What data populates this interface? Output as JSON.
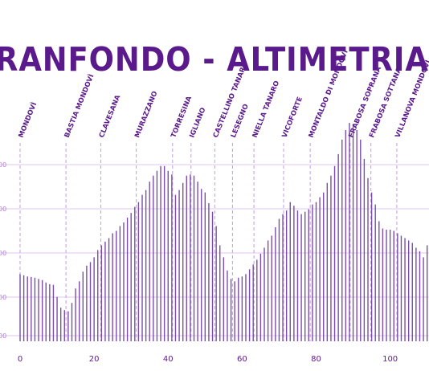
{
  "colors": {
    "accent": "#5b1a8c",
    "bars": "#7a4ea8",
    "guides": "#c59be0",
    "grid": "#e1c6f0",
    "ticks": "#b07fd0"
  },
  "title": "RANFONDO - ALTIMETRIA",
  "chart_data": {
    "type": "bar",
    "title": "RANFONDO - ALTIMETRIA",
    "xlabel": "",
    "ylabel": "",
    "x_ticks": [
      0,
      20,
      40,
      60,
      80,
      100
    ],
    "xlim": [
      0,
      110.5
    ],
    "ylim": [
      80,
      1000
    ],
    "grid": true,
    "y_tick_labels": [
      "00",
      "00",
      "00",
      "00",
      "00"
    ],
    "waypoints": [
      {
        "name": "MONDOVÌ",
        "km": 0
      },
      {
        "name": "BASTIA MONDOVÌ",
        "km": 12.4
      },
      {
        "name": "CLAVESANA",
        "km": 21.8
      },
      {
        "name": "MURAZZANO",
        "km": 31.4
      },
      {
        "name": "TORRESINA",
        "km": 41.2
      },
      {
        "name": "IGLIANO",
        "km": 46.2
      },
      {
        "name": "CASTELLINO TANARO",
        "km": 52.6
      },
      {
        "name": "LESEGNO",
        "km": 57.4
      },
      {
        "name": "NIELLA TANARO",
        "km": 63.2
      },
      {
        "name": "VICOFORTE",
        "km": 71.2
      },
      {
        "name": "MONTALDO DI MONDOVÌ",
        "km": 78.4
      },
      {
        "name": "FRABOSA SOPRANA",
        "km": 89.2
      },
      {
        "name": "FRABOSA SOTTANA",
        "km": 94.8
      },
      {
        "name": "VILLANOVA MONDOVÌ",
        "km": 101.8
      }
    ],
    "km": [
      0,
      1,
      2,
      3,
      4,
      5,
      6,
      7,
      8,
      9,
      10,
      11,
      12,
      13,
      14,
      15,
      16,
      17,
      18,
      19,
      20,
      21,
      22,
      23,
      24,
      25,
      26,
      27,
      28,
      29,
      30,
      31,
      32,
      33,
      34,
      35,
      36,
      37,
      38,
      39,
      40,
      41,
      42,
      43,
      44,
      45,
      46,
      47,
      48,
      49,
      50,
      51,
      52,
      53,
      54,
      55,
      56,
      57,
      58,
      59,
      60,
      61,
      62,
      63,
      64,
      65,
      66,
      67,
      68,
      69,
      70,
      71,
      72,
      73,
      74,
      75,
      76,
      77,
      78,
      79,
      80,
      81,
      82,
      83,
      84,
      85,
      86,
      87,
      88,
      89,
      90,
      91,
      92,
      93,
      94,
      95,
      96,
      97,
      98,
      99,
      100,
      101,
      102,
      103,
      104,
      105,
      106,
      107,
      108,
      109,
      110
    ],
    "values": [
      360,
      355,
      350,
      348,
      345,
      340,
      335,
      325,
      318,
      315,
      265,
      220,
      210,
      205,
      240,
      300,
      330,
      370,
      395,
      410,
      430,
      460,
      480,
      495,
      510,
      530,
      540,
      560,
      575,
      595,
      615,
      640,
      660,
      690,
      710,
      745,
      770,
      790,
      810,
      810,
      790,
      775,
      690,
      710,
      740,
      770,
      775,
      770,
      745,
      715,
      700,
      655,
      620,
      560,
      480,
      430,
      375,
      340,
      330,
      345,
      350,
      360,
      380,
      400,
      420,
      445,
      470,
      500,
      520,
      555,
      590,
      610,
      625,
      660,
      645,
      625,
      610,
      620,
      630,
      650,
      660,
      680,
      700,
      740,
      770,
      810,
      860,
      920,
      960,
      990,
      985,
      960,
      920,
      840,
      760,
      700,
      650,
      580,
      550,
      545,
      545,
      540,
      530,
      520,
      510,
      500,
      490,
      470,
      455,
      430,
      480
    ]
  }
}
